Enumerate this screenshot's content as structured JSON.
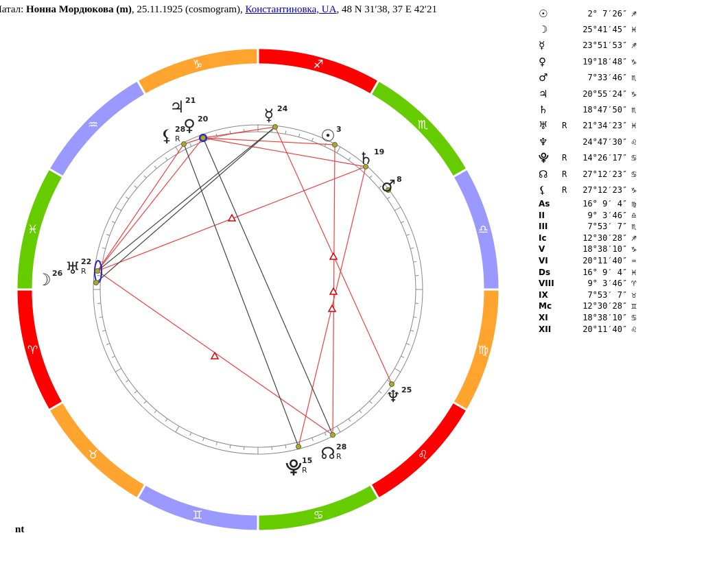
{
  "header": {
    "prefix": "Натал:",
    "name": "Нонна Мордюкова (m)",
    "details": ", 25.11.1925 (cosmogram), ",
    "place": "Константиновка, UA",
    "coords": ", 48 N 31′38, 37 E 42′21"
  },
  "wheel": {
    "signs": [
      "♎",
      "♏",
      "♐",
      "♑",
      "♒",
      "♓",
      "♈",
      "♉",
      "♊",
      "♋",
      "♌",
      "♍"
    ],
    "planets": [
      {
        "glyph": "♃",
        "deg": "21"
      },
      {
        "glyph": "♀",
        "deg": "20"
      },
      {
        "glyph": "⚸",
        "deg": "28",
        "retro": "R"
      },
      {
        "glyph": "☿",
        "deg": "24"
      },
      {
        "glyph": "☉",
        "deg": "3"
      },
      {
        "glyph": "♄",
        "deg": "19"
      },
      {
        "glyph": "♂",
        "deg": "8"
      },
      {
        "glyph": "♆",
        "deg": "25"
      },
      {
        "glyph": "☊",
        "deg": "28",
        "retro": "R"
      },
      {
        "glyph": "⯓",
        "deg": "15",
        "retro": "R"
      },
      {
        "glyph": "♅",
        "deg": "22",
        "retro": "R"
      },
      {
        "glyph": "☽",
        "deg": "26"
      }
    ]
  },
  "table": {
    "rows": [
      [
        "☉",
        "",
        "2° 7′26″",
        "♐"
      ],
      [
        "☽",
        "",
        "25°41′45″",
        "♓"
      ],
      [
        "☿",
        "",
        "23°51′53″",
        "♐"
      ],
      [
        "♀",
        "",
        "19°18′48″",
        "♑"
      ],
      [
        "♂",
        "",
        "7°33′46″",
        "♏"
      ],
      [
        "♃",
        "",
        "20°55′24″",
        "♑"
      ],
      [
        "♄",
        "",
        "18°47′50″",
        "♏"
      ],
      [
        "♅",
        "R",
        "21°34′23″",
        "♓"
      ],
      [
        "♆",
        "",
        "24°47′30″",
        "♌"
      ],
      [
        "⯓",
        "R",
        "14°26′17″",
        "♋"
      ],
      [
        "☊",
        "R",
        "27°12′23″",
        "♋"
      ],
      [
        "⚸",
        "R",
        "27°12′23″",
        "♑"
      ],
      [
        "As",
        "",
        "16° 9′ 4″",
        "♍"
      ],
      [
        "II",
        "",
        "9° 3′46″",
        "♎"
      ],
      [
        "III",
        "",
        "7°53′ 7″",
        "♏"
      ],
      [
        "Ic",
        "",
        "12°30′28″",
        "♐"
      ],
      [
        "V",
        "",
        "18°38′10″",
        "♑"
      ],
      [
        "VI",
        "",
        "20°11′40″",
        "♒"
      ],
      [
        "Ds",
        "",
        "16° 9′ 4″",
        "♓"
      ],
      [
        "VIII",
        "",
        "9° 3′46″",
        "♈"
      ],
      [
        "IX",
        "",
        "7°53′ 7″",
        "♉"
      ],
      [
        "Mc",
        "",
        "12°30′28″",
        "♊"
      ],
      [
        "XI",
        "",
        "18°38′10″",
        "♋"
      ],
      [
        "XII",
        "",
        "20°11′40″",
        "♌"
      ]
    ]
  },
  "footer": "nt"
}
